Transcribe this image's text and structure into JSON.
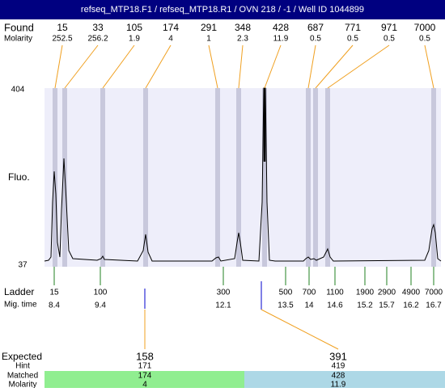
{
  "header": {
    "title": "refseq_MTP18.F1 / refseq_MTP18.R1 / OVN 218 / -1 / Well ID 1044899"
  },
  "found": {
    "label": "Found",
    "molarity_label": "Molarity",
    "peaks": [
      {
        "size": 15,
        "molarity": 252.5
      },
      {
        "size": 33,
        "molarity": 256.2
      },
      {
        "size": 105,
        "molarity": 1.9
      },
      {
        "size": 174,
        "molarity": 4
      },
      {
        "size": 291,
        "molarity": 1
      },
      {
        "size": 348,
        "molarity": 2.3
      },
      {
        "size": 428,
        "molarity": 11.9
      },
      {
        "size": 687,
        "molarity": 0.5
      },
      {
        "size": 771,
        "molarity": 0.5
      },
      {
        "size": 971,
        "molarity": 0.5
      },
      {
        "size": 7000,
        "molarity": 0.5
      }
    ]
  },
  "plot": {
    "y_label": "Fluo.",
    "y_max": 404,
    "y_min": 37
  },
  "ladder": {
    "label": "Ladder",
    "time_label": "Mig. time",
    "bands": [
      {
        "size": 15,
        "time": 8.4
      },
      {
        "size": 100,
        "time": 9.4
      },
      {
        "size": 300,
        "time": 12.1
      },
      {
        "size": 500,
        "time": 13.5
      },
      {
        "size": 700,
        "time": 14
      },
      {
        "size": 1100,
        "time": 14.6
      },
      {
        "size": 1900,
        "time": 15.2
      },
      {
        "size": 2900,
        "time": 15.7
      },
      {
        "size": 4900,
        "time": 16.2
      },
      {
        "size": 7000,
        "time": 16.7
      }
    ]
  },
  "expected": {
    "label": "Expected",
    "hint_label": "Hint",
    "matched_label": "Matched",
    "molarity_label": "Molarity",
    "fragments": [
      {
        "expected": 158,
        "hint": 171,
        "matched": 174,
        "molarity": 4
      },
      {
        "expected": 391,
        "hint": 419,
        "matched": 428,
        "molarity": 11.9
      }
    ]
  }
}
